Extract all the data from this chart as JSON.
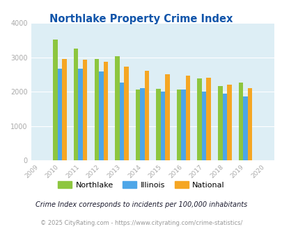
{
  "title": "Northlake Property Crime Index",
  "years": [
    2009,
    2010,
    2011,
    2012,
    2013,
    2014,
    2015,
    2016,
    2017,
    2018,
    2019,
    2020
  ],
  "northlake": [
    null,
    3520,
    3260,
    2940,
    3040,
    2070,
    2080,
    2060,
    2380,
    2160,
    2270,
    null
  ],
  "illinois": [
    null,
    2670,
    2670,
    2580,
    2260,
    2100,
    2000,
    2070,
    2010,
    1940,
    1860,
    null
  ],
  "national": [
    null,
    2950,
    2920,
    2870,
    2730,
    2610,
    2510,
    2470,
    2400,
    2200,
    2100,
    null
  ],
  "northlake_color": "#8dc63f",
  "illinois_color": "#4da6e8",
  "national_color": "#f5a623",
  "bg_color": "#ddeef5",
  "ylim": [
    0,
    4000
  ],
  "yticks": [
    0,
    1000,
    2000,
    3000,
    4000
  ],
  "legend_labels": [
    "Northlake",
    "Illinois",
    "National"
  ],
  "footnote1": "Crime Index corresponds to incidents per 100,000 inhabitants",
  "footnote2": "© 2025 CityRating.com - https://www.cityrating.com/crime-statistics/",
  "title_color": "#1155aa",
  "footnote1_color": "#1a1a2e",
  "footnote2_color": "#999999",
  "grid_color": "#ffffff",
  "tick_color": "#aaaaaa"
}
